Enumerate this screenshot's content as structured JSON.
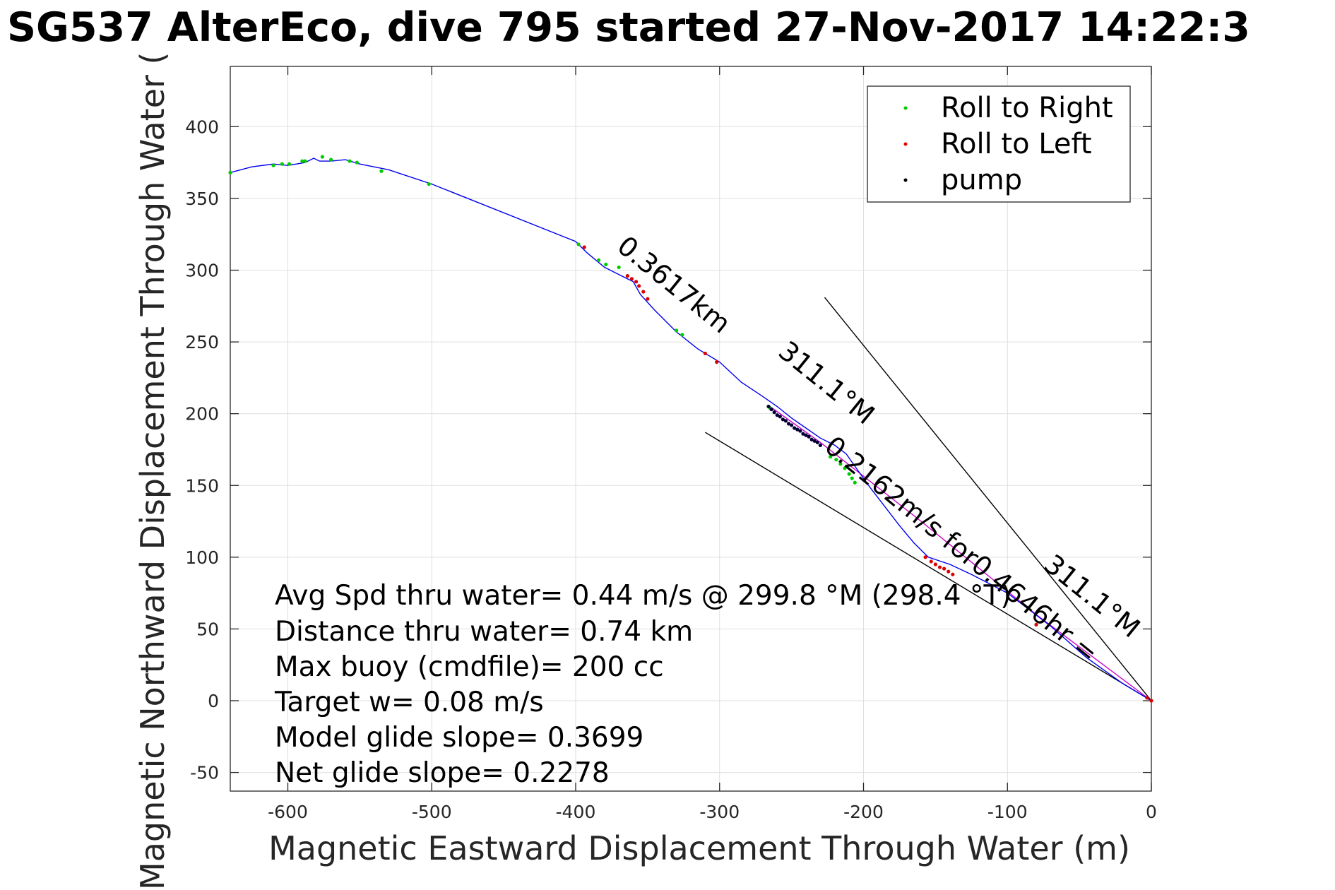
{
  "chart_data": {
    "type": "line",
    "title": "SG537 AlterEco, dive 795 started 27-Nov-2017 14:22:3",
    "xlabel": "Magnetic Eastward Displacement Through Water (m)",
    "ylabel": "Magnetic Northward Displacement Through Water (",
    "xlim": [
      -640,
      0
    ],
    "ylim": [
      -63,
      442
    ],
    "xticks": [
      -600,
      -500,
      -400,
      -300,
      -200,
      -100,
      0
    ],
    "yticks": [
      -50,
      0,
      50,
      100,
      150,
      200,
      250,
      300,
      350,
      400
    ],
    "grid": true,
    "legend_position": "top-right",
    "legend": [
      {
        "label": "Roll to Right",
        "color": "#00cc00"
      },
      {
        "label": "Roll to Left",
        "color": "#dd0000"
      },
      {
        "label": "pump",
        "color": "#000000"
      }
    ],
    "track": {
      "color": "#0000ee",
      "x": [
        0,
        -20,
        -45,
        -70,
        -100,
        -125,
        -140,
        -155,
        -165,
        -175,
        -185,
        -195,
        -205,
        -212,
        -220,
        -230,
        -240,
        -250,
        -260,
        -270,
        -285,
        -300,
        -315,
        -330,
        -345,
        -355,
        -360,
        -370,
        -380,
        -392,
        -400,
        -500,
        -530,
        -550,
        -560,
        -570,
        -578,
        -582,
        -588,
        -594,
        -600,
        -610,
        -625,
        -640
      ],
      "y": [
        0,
        12,
        30,
        52,
        75,
        88,
        95,
        100,
        110,
        122,
        135,
        148,
        162,
        172,
        178,
        183,
        190,
        197,
        205,
        212,
        222,
        236,
        245,
        257,
        272,
        283,
        292,
        297,
        302,
        312,
        320,
        360,
        370,
        374,
        377,
        376,
        376,
        378,
        375,
        374,
        373,
        374,
        372,
        368
      ]
    },
    "model_track": {
      "color": "#cc00cc",
      "x": [
        0,
        -80,
        -160,
        -230,
        -265
      ],
      "y": [
        0,
        60,
        125,
        180,
        205
      ]
    },
    "lines": [
      {
        "x": [
          0,
          -227
        ],
        "y": [
          0,
          281
        ],
        "color": "#000000"
      },
      {
        "x": [
          0,
          -310
        ],
        "y": [
          0,
          187
        ],
        "color": "#000000"
      }
    ],
    "roll_right": {
      "x": [
        -640,
        -610,
        -604,
        -599,
        -590,
        -588,
        -576,
        -570,
        -557,
        -552,
        -535,
        -502,
        -398,
        -384,
        -379,
        -370,
        -330,
        -326,
        -265,
        -223,
        -219,
        -216,
        -213,
        -210,
        -208,
        -206
      ],
      "y": [
        368,
        373,
        374,
        374,
        376,
        376,
        379,
        377,
        376,
        375,
        369,
        360,
        318,
        307,
        304,
        302,
        258,
        255,
        204,
        170,
        168,
        165,
        162,
        158,
        155,
        152
      ]
    },
    "roll_left": {
      "x": [
        -394,
        -364,
        -361,
        -358,
        -356,
        -353,
        -350,
        -310,
        -302,
        -157,
        -153,
        -150,
        -147,
        -144,
        -141,
        -138,
        -80,
        -3,
        0
      ],
      "y": [
        316,
        296,
        294,
        292,
        289,
        285,
        280,
        242,
        236,
        100,
        97,
        95,
        93,
        92,
        90,
        88,
        53,
        2,
        0
      ]
    },
    "pump": {
      "x": [
        -266,
        -264,
        -262,
        -260,
        -258,
        -256,
        -254,
        -252,
        -250,
        -248,
        -246,
        -244,
        -242,
        -240,
        -238,
        -236,
        -234,
        -232,
        -230
      ],
      "y": [
        205,
        203,
        201,
        199,
        198,
        196,
        195,
        193,
        192,
        190,
        189,
        188,
        186,
        185,
        184,
        182,
        181,
        180,
        178
      ]
    },
    "rotated_labels": [
      "0.3617km",
      "0.2162m/s for0.4646hr =",
      "311.1°M",
      "311.1°M"
    ],
    "annotations": [
      "Avg Spd thru water=  0.44 m/s @ 299.8 °M (298.4 °T)",
      "Distance thru water=  0.74 km",
      "Max buoy (cmdfile)= 200 cc",
      "Target w= 0.08 m/s",
      "Model glide slope= 0.3699",
      "Net glide slope= 0.2278"
    ]
  }
}
